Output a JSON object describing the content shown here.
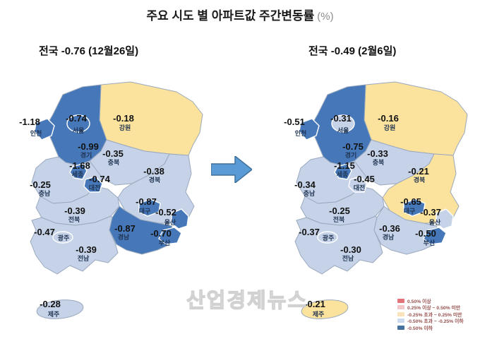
{
  "title": {
    "main": "주요 시도 별 아파트값 주간변동률",
    "unit": "(%)"
  },
  "watermark": {
    "text": "산업경제뉴스"
  },
  "colors": {
    "map_dark": "#4678b9",
    "map_light": "#c5d2e8",
    "map_yellow": "#fbe29d",
    "region_border": "#9aa9bd",
    "value_text": "#111111",
    "name_text": "#1f3350",
    "arrow_fill": "#5b9bd5",
    "arrow_border": "#41719c",
    "legend_text": "#96514f"
  },
  "maps": [
    {
      "id": "left",
      "subtitle": "전국 -0.76 (12월26일)",
      "regions": [
        {
          "key": "gyeonggi",
          "name": "경기",
          "value": "-0.99",
          "band": "dark"
        },
        {
          "key": "gangwon",
          "name": "강원",
          "value": "-0.18",
          "band": "yellow"
        },
        {
          "key": "chungbuk",
          "name": "충북",
          "value": "-0.35",
          "band": "light"
        },
        {
          "key": "chungnam",
          "name": "충남",
          "value": "-0.25",
          "band": "light"
        },
        {
          "key": "gyeongbuk",
          "name": "경북",
          "value": "-0.38",
          "band": "light"
        },
        {
          "key": "jeonbuk",
          "name": "전북",
          "value": "-0.39",
          "band": "light"
        },
        {
          "key": "jeonnam",
          "name": "전남",
          "value": "-0.39",
          "band": "light"
        },
        {
          "key": "gyeongnam",
          "name": "경남",
          "value": "-0.87",
          "band": "dark"
        },
        {
          "key": "incheon",
          "name": "인천",
          "value": "-1.18",
          "band": "dark"
        },
        {
          "key": "seoul",
          "name": "서울",
          "value": "-0.74",
          "band": "dark"
        },
        {
          "key": "sejong",
          "name": "세종",
          "value": "-1.68",
          "band": "dark"
        },
        {
          "key": "daejeon",
          "name": "대전",
          "value": "-0.74",
          "band": "dark"
        },
        {
          "key": "daegu",
          "name": "대구",
          "value": "-0.87",
          "band": "dark"
        },
        {
          "key": "ulsan",
          "name": "울산",
          "value": "-0.52",
          "band": "dark"
        },
        {
          "key": "busan",
          "name": "부산",
          "value": "-0.70",
          "band": "dark"
        },
        {
          "key": "gwangju",
          "name": "광주",
          "value": "-0.47",
          "band": "light"
        },
        {
          "key": "jeju",
          "name": "제주",
          "value": "-0.28",
          "band": "light"
        }
      ]
    },
    {
      "id": "right",
      "subtitle": "전국 -0.49 (2월6일)",
      "regions": [
        {
          "key": "gyeonggi",
          "name": "경기",
          "value": "-0.75",
          "band": "dark"
        },
        {
          "key": "gangwon",
          "name": "강원",
          "value": "-0.16",
          "band": "yellow"
        },
        {
          "key": "chungbuk",
          "name": "충북",
          "value": "-0.33",
          "band": "light"
        },
        {
          "key": "chungnam",
          "name": "충남",
          "value": "-0.34",
          "band": "light"
        },
        {
          "key": "gyeongbuk",
          "name": "경북",
          "value": "-0.21",
          "band": "yellow"
        },
        {
          "key": "jeonbuk",
          "name": "전북",
          "value": "-0.25",
          "band": "light"
        },
        {
          "key": "jeonnam",
          "name": "전남",
          "value": "-0.30",
          "band": "light"
        },
        {
          "key": "gyeongnam",
          "name": "경남",
          "value": "-0.36",
          "band": "light"
        },
        {
          "key": "incheon",
          "name": "인천",
          "value": "-0.51",
          "band": "dark"
        },
        {
          "key": "seoul",
          "name": "서울",
          "value": "-0.31",
          "band": "light"
        },
        {
          "key": "sejong",
          "name": "세종",
          "value": "-1.15",
          "band": "dark"
        },
        {
          "key": "daejeon",
          "name": "대전",
          "value": "-0.45",
          "band": "light"
        },
        {
          "key": "daegu",
          "name": "대구",
          "value": "-0.65",
          "band": "dark"
        },
        {
          "key": "ulsan",
          "name": "울산",
          "value": "-0.37",
          "band": "light"
        },
        {
          "key": "busan",
          "name": "부산",
          "value": "-0.50",
          "band": "dark"
        },
        {
          "key": "gwangju",
          "name": "광주",
          "value": "-0.37",
          "band": "light"
        },
        {
          "key": "jeju",
          "name": "제주",
          "value": "-0.21",
          "band": "yellow"
        }
      ]
    }
  ],
  "legend": {
    "items": [
      {
        "label": "0.50% 이상",
        "color": "#e2737b"
      },
      {
        "label": "0.25% 이상 ~ 0.50% 미만",
        "color": "#f4c5c9"
      },
      {
        "label": "-0.25% 초과 ~ 0.25% 미만",
        "color": "#fae3b8"
      },
      {
        "label": "-0.50% 초과 ~ -0.25% 이하",
        "color": "#ccd9ec"
      },
      {
        "label": "-0.50% 이하",
        "color": "#45719f"
      }
    ]
  },
  "chart_data": {
    "type": "heatmap",
    "subtype": "choropleth_map_pair",
    "title": "주요 시도 별 아파트값 주간변동률 (%)",
    "categories": [
      "전국",
      "인천",
      "서울",
      "경기",
      "강원",
      "충북",
      "세종",
      "대전",
      "충남",
      "경북",
      "대구",
      "전북",
      "광주",
      "전남",
      "경남",
      "울산",
      "부산",
      "제주"
    ],
    "series": [
      {
        "name": "12월26일",
        "values": [
          -0.76,
          -1.18,
          -0.74,
          -0.99,
          -0.18,
          -0.35,
          -1.68,
          -0.74,
          -0.25,
          -0.38,
          -0.87,
          -0.39,
          -0.47,
          -0.39,
          -0.87,
          -0.52,
          -0.7,
          -0.28
        ]
      },
      {
        "name": "2월6일",
        "values": [
          -0.49,
          -0.51,
          -0.31,
          -0.75,
          -0.16,
          -0.33,
          -1.15,
          -0.45,
          -0.34,
          -0.21,
          -0.65,
          -0.25,
          -0.37,
          -0.3,
          -0.36,
          -0.37,
          -0.5,
          -0.21
        ]
      }
    ],
    "legend_position": "bottom-right",
    "color_bands": [
      {
        "range": "0.50% 이상",
        "color": "#e2737b"
      },
      {
        "range": "0.25% 이상 ~ 0.50% 미만",
        "color": "#f4c5c9"
      },
      {
        "range": "-0.25% 초과 ~ 0.25% 미만",
        "color": "#fae3b8"
      },
      {
        "range": "-0.50% 초과 ~ -0.25% 이하",
        "color": "#ccd9ec"
      },
      {
        "range": "-0.50% 이하",
        "color": "#45719f"
      }
    ]
  }
}
